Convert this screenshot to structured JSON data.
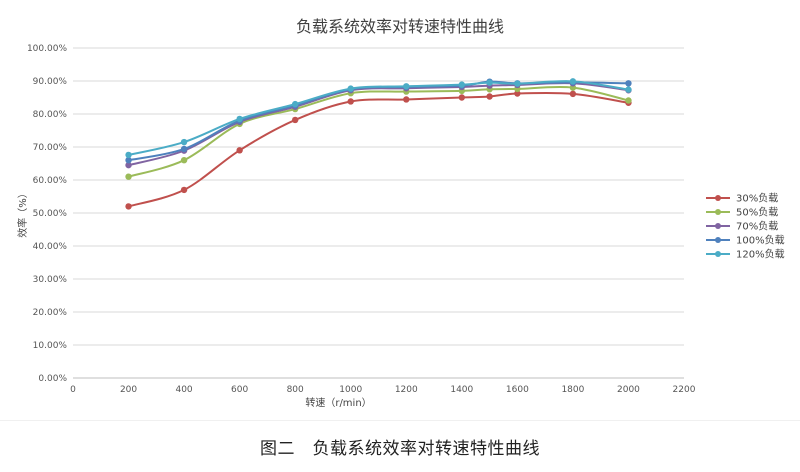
{
  "chart_data": {
    "type": "line",
    "title": "负载系统效率对转速特性曲线",
    "xlabel": "转速（r/min）",
    "ylabel": "效率（%）",
    "xlim": [
      0,
      2200
    ],
    "ylim": [
      0,
      100
    ],
    "x_ticks": [
      0,
      200,
      400,
      600,
      800,
      1000,
      1200,
      1400,
      1600,
      1800,
      2000,
      2200
    ],
    "y_ticks": [
      "0.00%",
      "10.00%",
      "20.00%",
      "30.00%",
      "40.00%",
      "50.00%",
      "60.00%",
      "70.00%",
      "80.00%",
      "90.00%",
      "100.00%"
    ],
    "grid": "horizontal",
    "legend_position": "right",
    "x": [
      200,
      400,
      600,
      800,
      1000,
      1200,
      1400,
      1500,
      1600,
      1800,
      2000
    ],
    "series": [
      {
        "name": "30%负载",
        "color": "#c0504d",
        "values": [
          52.0,
          57.0,
          69.0,
          78.2,
          83.8,
          84.4,
          85.0,
          85.3,
          86.2,
          86.1,
          83.4
        ]
      },
      {
        "name": "50%负载",
        "color": "#9bbb59",
        "values": [
          61.0,
          66.0,
          77.0,
          81.5,
          86.3,
          86.8,
          87.0,
          87.5,
          87.6,
          88.0,
          84.1
        ]
      },
      {
        "name": "70%负载",
        "color": "#8064a2",
        "values": [
          64.5,
          68.9,
          77.6,
          82.2,
          87.2,
          87.8,
          88.2,
          88.6,
          88.8,
          89.3,
          87.2
        ]
      },
      {
        "name": "100%负载",
        "color": "#4f81bd",
        "values": [
          66.0,
          69.4,
          78.0,
          82.6,
          87.5,
          88.2,
          88.6,
          89.8,
          89.3,
          89.6,
          89.3
        ]
      },
      {
        "name": "120%负载",
        "color": "#4bacc6",
        "values": [
          67.6,
          71.5,
          78.5,
          83.0,
          87.7,
          88.4,
          88.9,
          89.5,
          89.2,
          89.9,
          87.4
        ]
      }
    ]
  },
  "caption": "图二　负载系统效率对转速特性曲线"
}
